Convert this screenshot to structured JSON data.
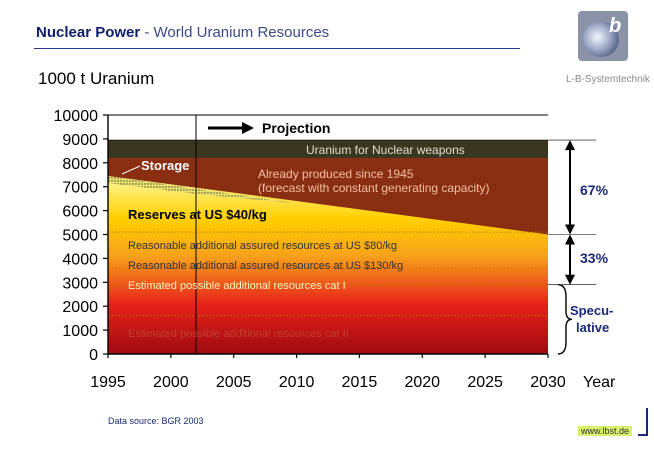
{
  "slide": {
    "title_main": "Nuclear Power",
    "title_sub": " - World Uranium Resources",
    "logo_text": "L-B-Systemtechnik",
    "data_source": "Data source: BGR 2003",
    "url": "www.lbst.de"
  },
  "colors": {
    "weapons": "#3a3620",
    "produced": "#8a2e12",
    "reserves_top": "#fff8a0",
    "reserves_bottom": "#ffd000",
    "mid": "#f7a11a",
    "low": "#e8221a",
    "bottom": "#9e0a10",
    "storage": "#e8e070"
  },
  "chart_data": {
    "type": "area",
    "ylabel": "1000 t Uranium",
    "xlabel": "Year",
    "xlim": [
      1995,
      2030
    ],
    "ylim": [
      0,
      10000
    ],
    "xticks": [
      1995,
      2000,
      2005,
      2010,
      2015,
      2020,
      2025,
      2030
    ],
    "yticks": [
      0,
      1000,
      2000,
      3000,
      4000,
      5000,
      6000,
      7000,
      8000,
      9000,
      10000
    ],
    "projection_start": 2002,
    "projection_label": "Projection",
    "layers": [
      {
        "name": "Estimated possible additional resources cat II",
        "from": 0,
        "to": 1600
      },
      {
        "name": "Estimated possible additional resources cat I",
        "from": 1600,
        "to": 2900
      },
      {
        "name": "Reasonable additional assured resources at US $130/kg",
        "from": 2900,
        "to": 3600
      },
      {
        "name": "Reasonable additional assured resources at US $80/kg",
        "from": 3600,
        "to": 5100
      },
      {
        "name": "Reserves at US $40/kg",
        "from": 5100,
        "boundary": [
          [
            1995,
            7450
          ],
          [
            2030,
            5000
          ]
        ]
      },
      {
        "name": "Already produced since 1945",
        "note": "(forecast with constant generating capacity)",
        "to": 8200
      },
      {
        "name": "Uranium for Nuclear weapons",
        "from": 8200,
        "to": 8950
      }
    ],
    "storage": {
      "label": "Storage",
      "upper": [
        [
          1995,
          7450
        ],
        [
          2002,
          7000
        ]
      ],
      "lower": [
        [
          1995,
          7150
        ],
        [
          2002,
          6700
        ],
        [
          2010,
          6300
        ]
      ]
    },
    "brackets": [
      {
        "label": "67%",
        "from": 5000,
        "to": 8950
      },
      {
        "label": "33%",
        "from": 2900,
        "to": 5000
      },
      {
        "label": "Specu-\nlative",
        "from": 0,
        "to": 2900
      }
    ]
  }
}
